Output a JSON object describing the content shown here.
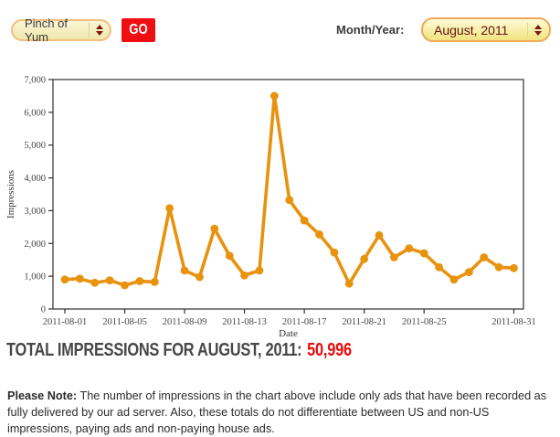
{
  "controls": {
    "site_select": {
      "value": "Pinch of Yum"
    },
    "go_button": "GO",
    "month_year_label": "Month/Year:",
    "month_select": {
      "value": "August, 2011"
    }
  },
  "chart_data": {
    "type": "line",
    "title": "",
    "xlabel": "Date",
    "ylabel": "Impressions",
    "x": [
      "2011-08-01",
      "2011-08-02",
      "2011-08-03",
      "2011-08-04",
      "2011-08-05",
      "2011-08-06",
      "2011-08-07",
      "2011-08-08",
      "2011-08-09",
      "2011-08-10",
      "2011-08-11",
      "2011-08-12",
      "2011-08-13",
      "2011-08-14",
      "2011-08-15",
      "2011-08-16",
      "2011-08-17",
      "2011-08-18",
      "2011-08-19",
      "2011-08-20",
      "2011-08-21",
      "2011-08-22",
      "2011-08-23",
      "2011-08-24",
      "2011-08-25",
      "2011-08-26",
      "2011-08-27",
      "2011-08-28",
      "2011-08-29",
      "2011-08-30",
      "2011-08-31"
    ],
    "values": [
      900,
      925,
      800,
      875,
      725,
      850,
      825,
      3075,
      1175,
      975,
      2450,
      1625,
      1025,
      1175,
      6500,
      3325,
      2700,
      2275,
      1725,
      775,
      1525,
      2250,
      1575,
      1850,
      1700,
      1275,
      900,
      1125,
      1575,
      1275,
      1246
    ],
    "ylim": [
      0,
      7000
    ],
    "y_ticks": [
      0,
      1000,
      2000,
      3000,
      4000,
      5000,
      6000,
      7000
    ],
    "x_tick_labels": [
      "2011-08-01",
      "2011-08-05",
      "2011-08-09",
      "2011-08-13",
      "2011-08-17",
      "2011-08-21",
      "2011-08-25",
      "2011-08-31"
    ],
    "grid": false,
    "legend": "none",
    "line_color": "#E8920E",
    "axis_color": "#2F2F2F"
  },
  "summary": {
    "label": "TOTAL IMPRESSIONS FOR AUGUST, 2011:",
    "value": "50,996"
  },
  "note": {
    "label": "Please Note:",
    "text": " The number of impressions in the chart above include only ads that have been recorded as fully delivered by our ad server. Also, these totals do not differentiate between US and non-US impressions, paying ads and non-paying house ads."
  }
}
